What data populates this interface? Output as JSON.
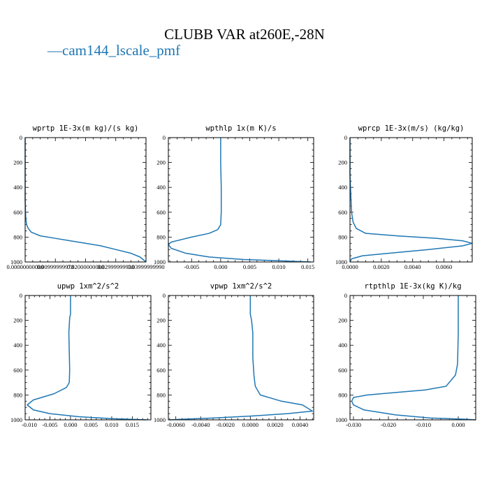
{
  "title": "CLUBB VAR at260E,-28N",
  "legend": {
    "line_symbol": "—",
    "label": "cam144_lscale_pmf",
    "color": "#1f77b4"
  },
  "chart_data": [
    {
      "type": "line",
      "title": "wprtp  1E-3x(m kg)/(s kg)",
      "xlim": [
        0,
        0.04
      ],
      "ylim": [
        1000,
        0
      ],
      "xticks": [
        0,
        0.01,
        0.02,
        0.03,
        0.04
      ],
      "xtick_labels": [
        "0.00000000000",
        "0.00999999978",
        "0.02000000000",
        "0.02999999930",
        "0.03999999990"
      ],
      "yticks": [
        0,
        200,
        400,
        600,
        800,
        1000
      ],
      "ytick_labels": [
        "0",
        "200",
        "400",
        "600",
        "800",
        "1000"
      ],
      "series": [
        {
          "name": "cam144_lscale_pmf",
          "x": [
            0,
            0,
            0,
            0.0002,
            0.0005,
            0.001,
            0.002,
            0.005,
            0.01,
            0.015,
            0.02,
            0.025,
            0.03,
            0.035,
            0.038,
            0.04
          ],
          "y": [
            0,
            200,
            500,
            650,
            700,
            730,
            760,
            790,
            810,
            830,
            850,
            870,
            900,
            930,
            960,
            1000
          ]
        }
      ]
    },
    {
      "type": "line",
      "title": "wpthlp  1x(m K)/s",
      "xlim": [
        -0.009,
        0.016
      ],
      "ylim": [
        1000,
        0
      ],
      "xticks": [
        -0.005,
        0,
        0.005,
        0.01,
        0.015
      ],
      "xtick_labels": [
        "-0.005",
        "0.000",
        "0.005",
        "0.010",
        "0.015"
      ],
      "yticks": [
        0,
        200,
        400,
        600,
        800,
        1000
      ],
      "ytick_labels": [
        "0",
        "200",
        "400",
        "600",
        "800",
        "1000"
      ],
      "series": [
        {
          "name": "cam144_lscale_pmf",
          "x": [
            0,
            0,
            0.0001,
            0.0001,
            0,
            -0.0005,
            -0.002,
            -0.005,
            -0.0085,
            -0.009,
            -0.0085,
            -0.006,
            -0.002,
            0.004,
            0.01,
            0.0155
          ],
          "y": [
            0,
            200,
            400,
            600,
            700,
            740,
            770,
            800,
            840,
            860,
            890,
            930,
            960,
            980,
            990,
            1000
          ]
        }
      ]
    },
    {
      "type": "line",
      "title": "wprcp  1E-3x(m/s) (kg/kg)",
      "xlim": [
        0,
        0.0078
      ],
      "ylim": [
        1000,
        0
      ],
      "xticks": [
        0,
        0.002,
        0.004,
        0.006
      ],
      "xtick_labels": [
        "0.0000",
        "0.0020",
        "0.0040",
        "0.0060"
      ],
      "yticks": [
        0,
        200,
        400,
        600,
        800,
        1000
      ],
      "ytick_labels": [
        "0",
        "200",
        "400",
        "600",
        "800",
        "1000"
      ],
      "series": [
        {
          "name": "cam144_lscale_pmf",
          "x": [
            0,
            0,
            0.0001,
            0.0002,
            0.0004,
            0.001,
            0.003,
            0.0055,
            0.0072,
            0.0078,
            0.0072,
            0.005,
            0.0025,
            0.0008,
            0.0001,
            0
          ],
          "y": [
            0,
            300,
            600,
            680,
            730,
            770,
            790,
            810,
            830,
            850,
            870,
            900,
            930,
            950,
            975,
            1000
          ]
        }
      ]
    },
    {
      "type": "line",
      "title": "upwp  1xm^2/s^2",
      "xlim": [
        -0.011,
        0.0195
      ],
      "ylim": [
        1000,
        0
      ],
      "xticks": [
        -0.01,
        -0.005,
        0,
        0.005,
        0.01,
        0.015
      ],
      "xtick_labels": [
        "-0.010",
        "-0.005",
        "0.000",
        "0.005",
        "0.010",
        "0.015"
      ],
      "yticks": [
        0,
        200,
        400,
        600,
        800,
        1000
      ],
      "ytick_labels": [
        "0",
        "200",
        "400",
        "600",
        "800",
        "1000"
      ],
      "series": [
        {
          "name": "cam144_lscale_pmf",
          "x": [
            0,
            0,
            -0.0002,
            -0.0004,
            -0.0003,
            -0.0002,
            -0.0003,
            -0.001,
            -0.004,
            -0.009,
            -0.0105,
            -0.009,
            -0.005,
            0.002,
            0.01,
            0.0185
          ],
          "y": [
            0,
            150,
            180,
            300,
            450,
            600,
            700,
            740,
            790,
            840,
            880,
            920,
            950,
            975,
            990,
            1000
          ]
        }
      ]
    },
    {
      "type": "line",
      "title": "vpwp  1xm^2/s^2",
      "xlim": [
        -0.0066,
        0.0051
      ],
      "ylim": [
        1000,
        0
      ],
      "xticks": [
        -0.006,
        -0.004,
        -0.002,
        0,
        0.002,
        0.004
      ],
      "xtick_labels": [
        "-0.0060",
        "-0.0040",
        "-0.0020",
        "0.0000",
        "0.0020",
        "0.0040"
      ],
      "yticks": [
        0,
        200,
        400,
        600,
        800,
        1000
      ],
      "ytick_labels": [
        "0",
        "200",
        "400",
        "600",
        "800",
        "1000"
      ],
      "series": [
        {
          "name": "cam144_lscale_pmf",
          "x": [
            0,
            0,
            0.0001,
            0.0002,
            0.0002,
            0.0003,
            0.0004,
            0.0008,
            0.0025,
            0.0042,
            0.005,
            0.003,
            0,
            -0.003,
            -0.0055,
            -0.0065
          ],
          "y": [
            0,
            150,
            200,
            300,
            500,
            650,
            730,
            800,
            850,
            880,
            930,
            950,
            970,
            985,
            995,
            1000
          ]
        }
      ]
    },
    {
      "type": "line",
      "title": "rtpthlp  1E-3x(kg K)/kg",
      "xlim": [
        -0.031,
        0.005
      ],
      "ylim": [
        1000,
        0
      ],
      "xticks": [
        -0.03,
        -0.02,
        -0.01,
        0
      ],
      "xtick_labels": [
        "-0.030",
        "-0.020",
        "-0.010",
        "0.000"
      ],
      "yticks": [
        0,
        200,
        400,
        600,
        800,
        1000
      ],
      "ytick_labels": [
        "0",
        "200",
        "400",
        "600",
        "800",
        "1000"
      ],
      "series": [
        {
          "name": "cam144_lscale_pmf",
          "x": [
            0,
            0,
            -0.0002,
            -0.0008,
            -0.0035,
            -0.0095,
            -0.018,
            -0.026,
            -0.03,
            -0.0305,
            -0.03,
            -0.027,
            -0.018,
            -0.008,
            0.002,
            0.005
          ],
          "y": [
            0,
            300,
            550,
            640,
            730,
            760,
            780,
            800,
            820,
            850,
            880,
            920,
            960,
            985,
            995,
            1000
          ]
        }
      ]
    }
  ]
}
